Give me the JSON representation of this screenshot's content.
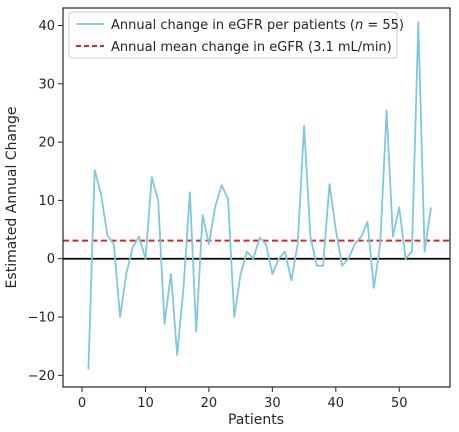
{
  "chart_data": {
    "type": "line",
    "xlabel": "Patients",
    "ylabel": "Estimated Annual Change",
    "xlim": [
      -3,
      58
    ],
    "ylim": [
      -22,
      43
    ],
    "x_ticks": [
      0,
      10,
      20,
      30,
      40,
      50
    ],
    "y_ticks": [
      -20,
      -10,
      0,
      10,
      20,
      30,
      40
    ],
    "grid": false,
    "legend_placement": "top-left",
    "colors": {
      "series": "#7fc8de",
      "mean": "#d62728",
      "zero": "#000000",
      "frame": "#262626"
    },
    "series": [
      {
        "name": "Annual change in eGFR per patients (n = 55)",
        "legend": {
          "main": "Annual change in eGFR per patients (",
          "var": "n",
          "rest": " = 55)"
        },
        "x": [
          1,
          2,
          3,
          4,
          5,
          6,
          7,
          8,
          9,
          10,
          11,
          12,
          13,
          14,
          15,
          16,
          17,
          18,
          19,
          20,
          21,
          22,
          23,
          24,
          25,
          26,
          27,
          28,
          29,
          30,
          31,
          32,
          33,
          34,
          35,
          36,
          37,
          38,
          39,
          40,
          41,
          42,
          43,
          44,
          45,
          46,
          47,
          48,
          49,
          50,
          51,
          52,
          53,
          54,
          55
        ],
        "values": [
          -19,
          15.2,
          11,
          4,
          2.5,
          -10,
          -2.5,
          2,
          3.8,
          0,
          14,
          10,
          -11.2,
          -2.6,
          -16.5,
          -5,
          11.4,
          -12.5,
          7.5,
          2.5,
          9,
          12.6,
          10.3,
          -10,
          -2.6,
          1.2,
          0,
          3.6,
          2.5,
          -2.6,
          0,
          1.2,
          -3.7,
          2.5,
          22.8,
          3.8,
          -1.2,
          -1.2,
          12.8,
          5,
          -1.2,
          0,
          2.5,
          3.8,
          6.3,
          -5,
          2.5,
          25.4,
          3.8,
          8.8,
          0,
          1.2,
          40.6,
          1.2,
          8.8
        ]
      }
    ],
    "reference_lines": [
      {
        "name": "Annual mean change in eGFR (3.1 mL/min)",
        "y": 3.1,
        "style": "dashed"
      },
      {
        "y": 0,
        "style": "solid"
      }
    ]
  }
}
